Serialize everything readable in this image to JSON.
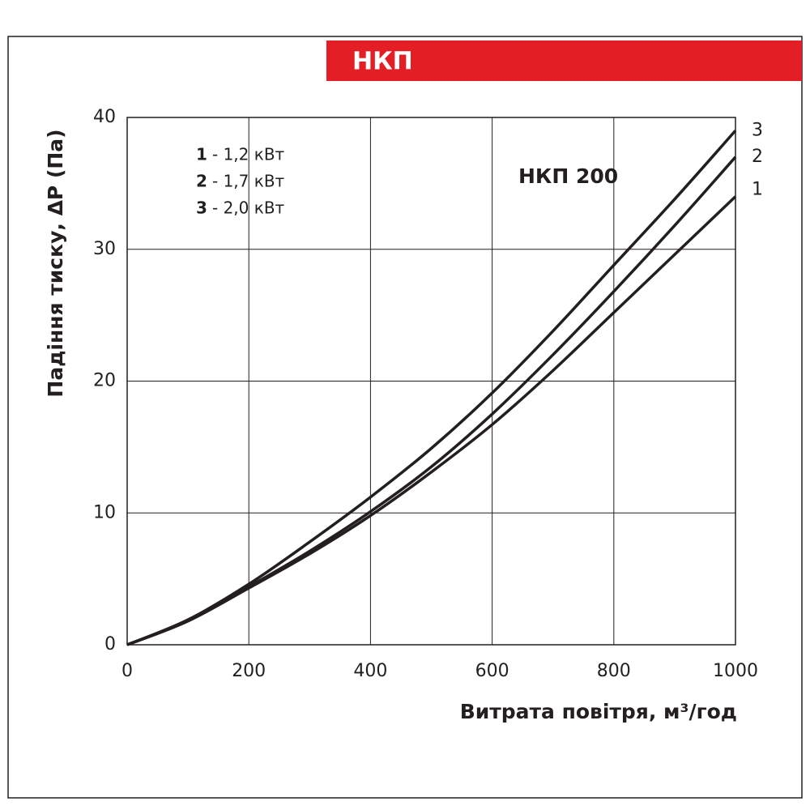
{
  "chart_data": {
    "type": "line",
    "banner": "НКП",
    "annotation": "НКП 200",
    "xlabel": "Витрата повітря, м³/год",
    "ylabel": "Падіння тиску,  ΔP (Па)",
    "x": [
      0,
      100,
      200,
      300,
      400,
      500,
      600,
      700,
      800,
      900,
      1000
    ],
    "series": [
      {
        "name": "1",
        "desc": "- 1,2 кВт",
        "color": "#231f20",
        "values": [
          0,
          1.8,
          4.3,
          6.9,
          9.8,
          13.1,
          16.7,
          20.8,
          25.2,
          29.6,
          34
        ]
      },
      {
        "name": "2",
        "desc": "- 1,7 кВт",
        "color": "#231f20",
        "values": [
          0,
          1.8,
          4.4,
          7.1,
          10.1,
          13.5,
          17.5,
          22,
          26.8,
          31.8,
          37
        ]
      },
      {
        "name": "3",
        "desc": "- 2,0 кВт",
        "color": "#231f20",
        "values": [
          0,
          1.9,
          4.6,
          7.8,
          11.2,
          14.9,
          19.1,
          23.8,
          28.8,
          33.8,
          39
        ]
      }
    ],
    "xlim": [
      0,
      1000
    ],
    "ylim": [
      0,
      40
    ],
    "xticks": [
      0,
      200,
      400,
      600,
      800,
      1000
    ],
    "yticks": [
      0,
      10,
      20,
      30,
      40
    ],
    "grid": true
  }
}
